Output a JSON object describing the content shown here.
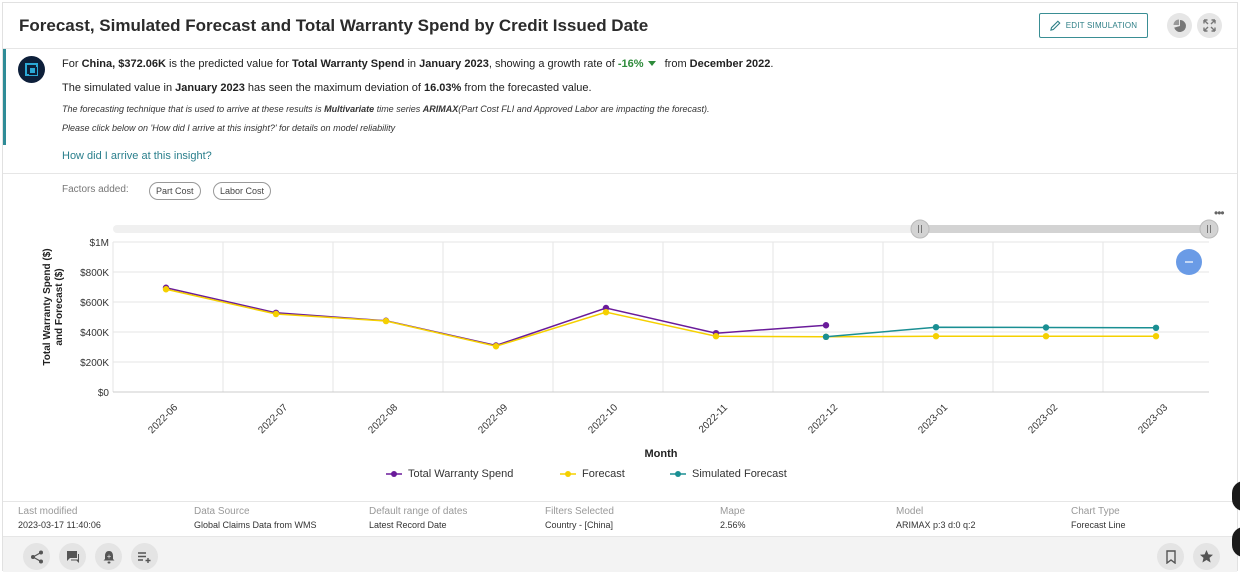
{
  "header": {
    "title": "Forecast, Simulated Forecast and Total Warranty Spend by Credit Issued Date",
    "edit_label": "EDIT SIMULATION"
  },
  "insight": {
    "l1_for": "For",
    "l1_country": "China",
    "l1_value": "$372.06K",
    "l1_mid": "is the predicted value for",
    "l1_metric": "Total Warranty Spend",
    "l1_in": "in",
    "l1_month": "January 2023",
    "l1_growth_text": ", showing a growth rate of",
    "l1_growth": "-16%",
    "l1_from": "from",
    "l1_prev": "December 2022",
    "l1_end": ".",
    "l2_a": "The simulated value in",
    "l2_month": "January 2023",
    "l2_b": "has seen the maximum deviation of",
    "l2_dev": "16.03%",
    "l2_c": "from the forecasted value.",
    "l3_a": "The forecasting technique that is used to arrive at these results is",
    "l3_method": "Multivariate",
    "l3_b": "time series",
    "l3_model": "ARIMAX",
    "l3_c": "(Part Cost FLI and Approved Labor are impacting the forecast).",
    "l4": "Please click below on 'How did I arrive at this insight?' for details on model reliability",
    "link": "How did I arrive at this insight?"
  },
  "factors": {
    "label": "Factors added:",
    "chips": [
      "Part Cost",
      "Labor Cost"
    ]
  },
  "chart_data": {
    "type": "line",
    "xlabel": "Month",
    "ylabel": "Total Warranty Spend ($) and Forecast ($)",
    "ylabel_line1": "Total Warranty Spend ($)",
    "ylabel_line2": "and Forecast ($)",
    "ylim": [
      0,
      1000000
    ],
    "ytick_values": [
      0,
      200000,
      400000,
      600000,
      800000,
      1000000
    ],
    "ytick_labels": [
      "$0",
      "$200K",
      "$400K",
      "$600K",
      "$800K",
      "$1M"
    ],
    "categories": [
      "2022-06",
      "2022-07",
      "2022-08",
      "2022-09",
      "2022-10",
      "2022-11",
      "2022-12",
      "2023-01",
      "2023-02",
      "2023-03"
    ],
    "series": [
      {
        "name": "Total Warranty Spend",
        "color": "#6a1b9a",
        "values": [
          695000,
          528000,
          475000,
          310000,
          560000,
          392000,
          445000,
          null,
          null,
          null
        ]
      },
      {
        "name": "Forecast",
        "color": "#f5d000",
        "values": [
          685000,
          520000,
          473000,
          305000,
          532000,
          372000,
          368000,
          372000,
          372000,
          372000
        ]
      },
      {
        "name": "Simulated Forecast",
        "color": "#1a8f93",
        "values": [
          null,
          null,
          null,
          null,
          null,
          null,
          368000,
          432000,
          430000,
          428000
        ]
      }
    ],
    "grid": true,
    "legend": "bottom"
  },
  "meta": [
    {
      "k": "Last modified",
      "v": "2023-03-17 11:40:06"
    },
    {
      "k": "Data Source",
      "v": "Global Claims Data from WMS"
    },
    {
      "k": "Default range of dates",
      "v": "Latest Record Date"
    },
    {
      "k": "Filters Selected",
      "v": "Country - [China]"
    },
    {
      "k": "Mape",
      "v": "2.56%"
    },
    {
      "k": "Model",
      "v": "ARIMAX p:3 d:0 q:2"
    },
    {
      "k": "Chart Type",
      "v": "Forecast Line"
    }
  ],
  "colors": {
    "accent": "#2f8c97",
    "link": "#2a7f8c",
    "growth": "#2e8b3b",
    "collapse": "#6a9be6"
  },
  "icons": [
    "pencil-icon",
    "pie-chart-icon",
    "expand-icon",
    "share-icon",
    "comment-icon",
    "alert-bell-icon",
    "add-list-icon",
    "bookmark-icon",
    "star-icon",
    "minus-icon"
  ]
}
